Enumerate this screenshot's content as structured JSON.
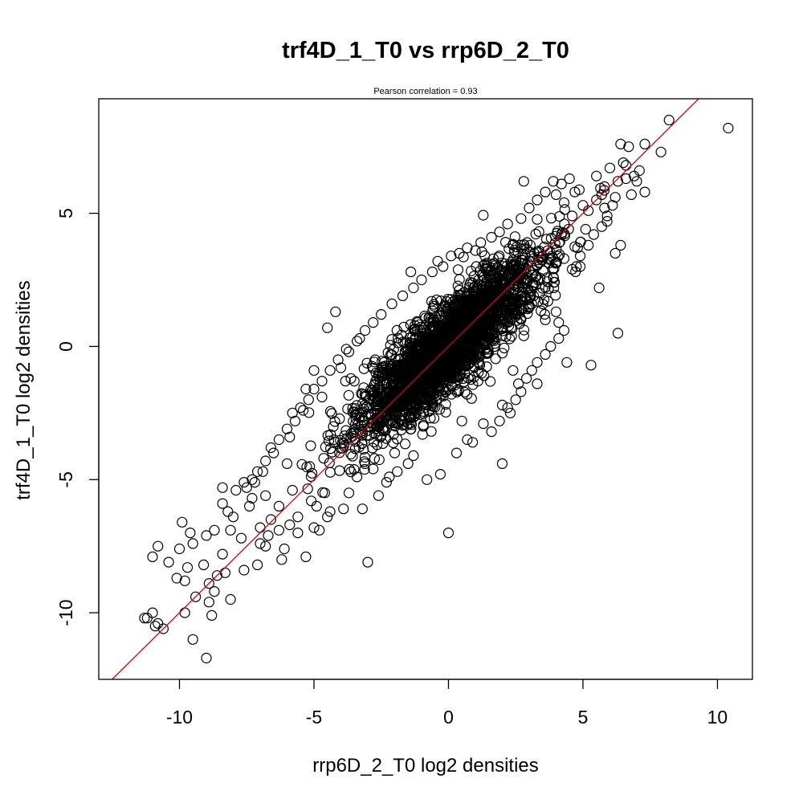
{
  "chart_data": {
    "type": "scatter",
    "title": "trf4D_1_T0 vs rrp6D_2_T0",
    "subtitle": "Pearson correlation =  0.93",
    "xlabel": "rrp6D_2_T0 log2 densities",
    "ylabel": "trf4D_1_T0 log2 densities",
    "xlim": [
      -13.0,
      11.3
    ],
    "ylim": [
      -12.5,
      9.3
    ],
    "x_ticks": [
      -10,
      -5,
      0,
      5,
      10
    ],
    "x_tick_labels": [
      "-10",
      "-5",
      "0",
      "5",
      "10"
    ],
    "y_ticks": [
      -10,
      -5,
      0,
      5
    ],
    "y_tick_labels": [
      "-10",
      "-5",
      "0",
      "5"
    ],
    "grid": false,
    "legend": "none",
    "marker": "open-circle",
    "colors": {
      "points": "#000000",
      "fit_line": "#e00000",
      "frame": "#000000"
    },
    "fit_line": {
      "slope": 1.0,
      "intercept": 0.0
    },
    "core_cloud": {
      "description_points_count": 2600,
      "center": [
        0.0,
        0.0
      ],
      "major_axis_sd": 2.3,
      "minor_axis_sd": 0.6
    },
    "series": [
      {
        "points": [
          [
            10.4,
            8.2
          ],
          [
            8.2,
            8.5
          ],
          [
            7.3,
            7.6
          ],
          [
            6.7,
            7.5
          ],
          [
            6.4,
            7.6
          ],
          [
            7.9,
            7.3
          ],
          [
            7.1,
            6.6
          ],
          [
            6.6,
            6.8
          ],
          [
            6.9,
            6.4
          ],
          [
            6.3,
            6.2
          ],
          [
            5.8,
            6.0
          ],
          [
            5.5,
            6.4
          ],
          [
            5.7,
            5.7
          ],
          [
            6.2,
            5.6
          ],
          [
            7.3,
            5.8
          ],
          [
            6.0,
            6.7
          ],
          [
            6.5,
            6.9
          ],
          [
            2.8,
            6.2
          ],
          [
            5.9,
            4.7
          ],
          [
            5.2,
            5.1
          ],
          [
            5.1,
            4.4
          ],
          [
            4.8,
            3.7
          ],
          [
            4.9,
            3.0
          ],
          [
            4.3,
            3.3
          ],
          [
            5.6,
            2.2
          ],
          [
            6.2,
            3.5
          ],
          [
            6.4,
            3.8
          ],
          [
            6.3,
            0.5
          ],
          [
            5.3,
            -0.7
          ],
          [
            4.4,
            -0.6
          ],
          [
            3.3,
            -1.4
          ],
          [
            4.1,
            0.9
          ],
          [
            3.1,
            1.6
          ],
          [
            3.6,
            1.0
          ],
          [
            2.8,
            0.4
          ],
          [
            2.4,
            -0.9
          ],
          [
            2.6,
            -1.4
          ],
          [
            2.0,
            -2.2
          ],
          [
            2.3,
            -2.5
          ],
          [
            1.1,
            -1.3
          ],
          [
            0.9,
            -3.6
          ],
          [
            0.3,
            -4.0
          ],
          [
            2.0,
            -4.4
          ],
          [
            -0.3,
            -4.8
          ],
          [
            0.0,
            -7.0
          ],
          [
            -3.0,
            -8.1
          ],
          [
            -0.8,
            -5.0
          ],
          [
            -2.2,
            -4.9
          ],
          [
            -3.4,
            -4.9
          ],
          [
            -3.9,
            -6.1
          ],
          [
            -4.2,
            1.3
          ],
          [
            -4.5,
            0.7
          ],
          [
            -3.7,
            -0.2
          ],
          [
            -3.3,
            0.3
          ],
          [
            -4.0,
            -0.8
          ],
          [
            -3.5,
            -1.3
          ],
          [
            -1.4,
            2.8
          ],
          [
            -0.4,
            3.2
          ],
          [
            0.1,
            3.4
          ],
          [
            1.0,
            3.6
          ],
          [
            -5.0,
            -0.9
          ],
          [
            -5.3,
            -1.6
          ],
          [
            -4.7,
            -1.9
          ],
          [
            -5.8,
            -2.5
          ],
          [
            -5.5,
            -2.3
          ],
          [
            -5.9,
            -3.4
          ],
          [
            -6.6,
            -3.8
          ],
          [
            -6.0,
            -4.4
          ],
          [
            -6.9,
            -4.7
          ],
          [
            -7.2,
            -5.1
          ],
          [
            -6.8,
            -5.6
          ],
          [
            -7.4,
            -6.0
          ],
          [
            -7.9,
            -5.4
          ],
          [
            -8.0,
            -6.4
          ],
          [
            -8.4,
            -5.9
          ],
          [
            -8.1,
            -6.9
          ],
          [
            -7.7,
            -7.2
          ],
          [
            -7.0,
            -7.4
          ],
          [
            -6.8,
            -7.5
          ],
          [
            -6.1,
            -7.6
          ],
          [
            -5.6,
            -7.0
          ],
          [
            -5.0,
            -6.8
          ],
          [
            -4.5,
            -6.4
          ],
          [
            -4.8,
            -6.9
          ],
          [
            -5.3,
            -7.9
          ],
          [
            -6.2,
            -8.0
          ],
          [
            -7.1,
            -8.2
          ],
          [
            -7.6,
            -8.4
          ],
          [
            -8.3,
            -8.5
          ],
          [
            -8.6,
            -8.6
          ],
          [
            -8.9,
            -8.9
          ],
          [
            -8.7,
            -9.2
          ],
          [
            -8.1,
            -9.5
          ],
          [
            -8.9,
            -9.6
          ],
          [
            -9.4,
            -9.4
          ],
          [
            -9.8,
            -8.8
          ],
          [
            -10.1,
            -8.7
          ],
          [
            -10.4,
            -8.1
          ],
          [
            -10.8,
            -7.5
          ],
          [
            -11.0,
            -7.9
          ],
          [
            -10.0,
            -7.6
          ],
          [
            -9.6,
            -7.0
          ],
          [
            -9.9,
            -6.6
          ],
          [
            -9.5,
            -7.4
          ],
          [
            -9.0,
            -7.1
          ],
          [
            -9.1,
            -8.2
          ],
          [
            -9.7,
            -8.3
          ],
          [
            -8.4,
            -7.8
          ],
          [
            -8.7,
            -6.9
          ],
          [
            -8.2,
            -6.2
          ],
          [
            -8.4,
            -5.3
          ],
          [
            -7.6,
            -5.1
          ],
          [
            -7.3,
            -5.7
          ],
          [
            -6.6,
            -6.5
          ],
          [
            -6.3,
            -6.0
          ],
          [
            -5.8,
            -5.4
          ],
          [
            -5.1,
            -5.8
          ],
          [
            -4.6,
            -5.5
          ],
          [
            -4.9,
            -6.0
          ],
          [
            -4.4,
            -6.2
          ],
          [
            -11.3,
            -10.2
          ],
          [
            -11.0,
            -10.0
          ],
          [
            -10.8,
            -10.4
          ],
          [
            -10.6,
            -10.6
          ],
          [
            -9.8,
            -10.0
          ],
          [
            -8.8,
            -10.1
          ],
          [
            -9.5,
            -11.0
          ],
          [
            -9.0,
            -11.7
          ],
          [
            -11.2,
            -10.2
          ],
          [
            -10.9,
            -10.5
          ],
          [
            -3.2,
            -6.1
          ],
          [
            -3.7,
            -5.5
          ],
          [
            -2.6,
            -5.6
          ],
          [
            -2.3,
            -5.1
          ],
          [
            -1.9,
            -4.7
          ],
          [
            -1.5,
            -4.4
          ],
          [
            -1.3,
            -4.1
          ],
          [
            -2.8,
            -4.6
          ],
          [
            -3.1,
            -4.4
          ],
          [
            -2.0,
            -4.0
          ],
          [
            0.7,
            -3.5
          ],
          [
            0.5,
            -2.8
          ],
          [
            1.3,
            -2.9
          ],
          [
            1.6,
            -3.2
          ],
          [
            1.9,
            -2.8
          ],
          [
            2.2,
            -2.3
          ],
          [
            2.5,
            -2.0
          ],
          [
            2.7,
            -1.7
          ],
          [
            2.9,
            -1.2
          ],
          [
            3.1,
            -0.9
          ],
          [
            3.3,
            -0.6
          ],
          [
            3.6,
            -0.3
          ],
          [
            3.8,
            0.0
          ],
          [
            4.1,
            0.3
          ],
          [
            4.3,
            0.6
          ],
          [
            4.0,
            1.3
          ],
          [
            3.7,
            1.7
          ],
          [
            3.4,
            2.0
          ],
          [
            3.2,
            2.4
          ],
          [
            3.9,
            2.6
          ],
          [
            4.6,
            2.9
          ],
          [
            4.9,
            3.4
          ],
          [
            5.2,
            3.8
          ],
          [
            5.4,
            4.2
          ],
          [
            5.7,
            4.5
          ],
          [
            5.9,
            4.9
          ],
          [
            6.1,
            5.3
          ],
          [
            4.6,
            4.9
          ],
          [
            4.3,
            5.4
          ],
          [
            4.0,
            5.7
          ],
          [
            3.6,
            5.8
          ],
          [
            3.3,
            5.5
          ],
          [
            3.0,
            5.2
          ],
          [
            2.7,
            4.8
          ],
          [
            2.2,
            4.6
          ],
          [
            1.9,
            4.3
          ],
          [
            1.6,
            4.1
          ],
          [
            1.2,
            3.9
          ],
          [
            0.7,
            3.7
          ],
          [
            0.4,
            3.5
          ],
          [
            -0.2,
            3.0
          ],
          [
            -0.6,
            2.8
          ],
          [
            -1.0,
            2.5
          ],
          [
            -1.3,
            2.2
          ],
          [
            -1.7,
            1.9
          ],
          [
            -2.1,
            1.6
          ],
          [
            -2.5,
            1.2
          ],
          [
            -2.8,
            0.9
          ],
          [
            -3.1,
            0.6
          ],
          [
            -3.4,
            0.2
          ],
          [
            -3.8,
            -0.1
          ],
          [
            -4.1,
            -0.5
          ],
          [
            -4.4,
            -0.9
          ],
          [
            -4.7,
            -1.3
          ],
          [
            -5.0,
            -1.6
          ],
          [
            -5.2,
            -2.0
          ],
          [
            -5.4,
            -2.4
          ],
          [
            -5.7,
            -2.8
          ],
          [
            -6.0,
            -3.1
          ],
          [
            -6.3,
            -3.5
          ],
          [
            -6.5,
            -4.0
          ],
          [
            -6.8,
            -4.3
          ],
          [
            -7.1,
            -4.7
          ],
          [
            -7.3,
            -5.0
          ],
          [
            -7.5,
            -5.3
          ],
          [
            -5.6,
            -6.4
          ],
          [
            -5.9,
            -6.7
          ],
          [
            -6.3,
            -6.9
          ],
          [
            -6.7,
            -7.1
          ],
          [
            -7.0,
            -6.8
          ],
          [
            6.8,
            5.7
          ],
          [
            7.0,
            6.2
          ],
          [
            6.6,
            6.3
          ],
          [
            5.8,
            5.2
          ],
          [
            5.5,
            5.5
          ],
          [
            5.0,
            5.3
          ],
          [
            4.7,
            5.8
          ],
          [
            4.2,
            6.1
          ],
          [
            3.9,
            6.2
          ],
          [
            4.5,
            6.3
          ]
        ]
      }
    ]
  }
}
